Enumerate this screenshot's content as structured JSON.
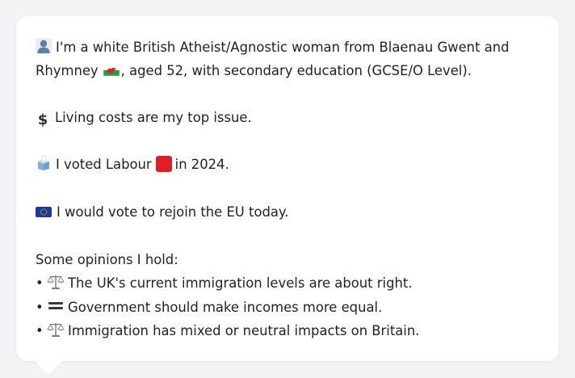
{
  "profile": {
    "intro_line1": "I'm a white British Atheist/Agnostic woman from Blaenau Gwent and",
    "intro_line2_a": "Rhymney",
    "intro_line2_b": ", aged 52, with secondary education (GCSE/O Level).",
    "living_costs": "Living costs are my top issue.",
    "voted_a": "I voted Labour",
    "voted_b": "in 2024.",
    "eu": "I would vote to rejoin the EU today.",
    "opinions_heading": "Some opinions I hold:",
    "opinions": [
      "The UK's current immigration levels are about right.",
      "Government should make incomes more equal.",
      "Immigration has mixed or neutral impacts on Britain."
    ],
    "bullet": "•",
    "dollar": "$"
  },
  "icons": {
    "person": "person-silhouette-icon",
    "wales_flag": "wales-flag-icon",
    "dollar": "heavy-dollar-sign-icon",
    "ballot_box": "ballot-box-icon",
    "labour": "red-square-icon",
    "eu_flag": "eu-flag-icon",
    "scales": "balance-scale-icon",
    "equal": "heavy-equals-icon"
  },
  "colors": {
    "background": "#f2f3f5",
    "card": "#ffffff",
    "text": "#222222",
    "labour_red": "#e01e2a",
    "eu_blue": "#1b3a94",
    "wales_green": "#2e9a3e",
    "wales_red": "#d32a2a"
  }
}
